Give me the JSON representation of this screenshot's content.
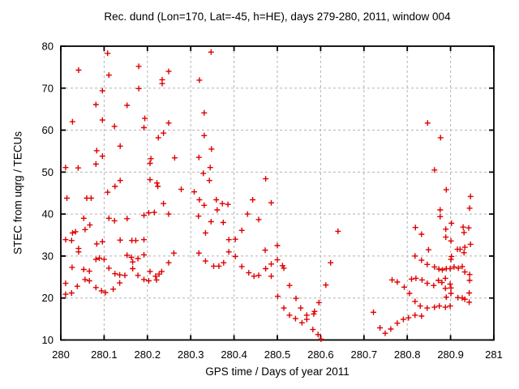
{
  "figure": {
    "background": "#ffffff"
  },
  "chart_data": {
    "type": "scatter",
    "title": "Rec. dund (Lon=170, Lat=-45, h=HE), days 279-280, 2011, window 004",
    "xlabel": "GPS time / Days of year 2011",
    "ylabel": "STEC from uqrg / TECUs",
    "xlim": [
      280,
      281
    ],
    "ylim": [
      10,
      80
    ],
    "xticks": {
      "values": [
        280,
        280.1,
        280.2,
        280.3,
        280.4,
        280.5,
        280.6,
        280.7,
        280.8,
        280.9,
        281
      ],
      "labels": [
        "280",
        "280.1",
        "280.2",
        "280.3",
        "280.4",
        "280.5",
        "280.6",
        "280.7",
        "280.8",
        "280.9",
        "281"
      ]
    },
    "yticks": {
      "values": [
        10,
        20,
        30,
        40,
        50,
        60,
        70,
        80
      ],
      "labels": [
        "10",
        "20",
        "30",
        "40",
        "50",
        "60",
        "70",
        "80"
      ]
    },
    "grid": true,
    "grid_color": "#b3b3b3",
    "axis_color": "#000000",
    "legend_position": "none",
    "marker": {
      "shape": "plus",
      "color": "#e00000",
      "size": 7
    },
    "points": [
      [
        280.108,
        78.3
      ],
      [
        280.041,
        74.3
      ],
      [
        280.111,
        73.1
      ],
      [
        280.18,
        75.2
      ],
      [
        280.249,
        74.0
      ],
      [
        280.234,
        72.0
      ],
      [
        280.234,
        71.1
      ],
      [
        280.32,
        71.9
      ],
      [
        280.096,
        69.4
      ],
      [
        280.18,
        69.9
      ],
      [
        280.081,
        66.1
      ],
      [
        280.153,
        65.9
      ],
      [
        280.096,
        62.4
      ],
      [
        280.027,
        62.0
      ],
      [
        280.124,
        60.9
      ],
      [
        280.194,
        62.8
      ],
      [
        280.192,
        60.6
      ],
      [
        280.249,
        61.7
      ],
      [
        280.237,
        59.3
      ],
      [
        280.225,
        58.2
      ],
      [
        280.137,
        56.2
      ],
      [
        280.083,
        55.1
      ],
      [
        280.096,
        53.8
      ],
      [
        280.081,
        51.9
      ],
      [
        280.011,
        51.1
      ],
      [
        280.04,
        51.0
      ],
      [
        280.208,
        53.2
      ],
      [
        280.206,
        52.1
      ],
      [
        280.263,
        53.4
      ],
      [
        280.319,
        53.5
      ],
      [
        280.206,
        48.2
      ],
      [
        280.222,
        47.4
      ],
      [
        280.224,
        46.6
      ],
      [
        280.125,
        46.6
      ],
      [
        280.137,
        48.0
      ],
      [
        280.278,
        45.9
      ],
      [
        280.308,
        45.3
      ],
      [
        280.108,
        45.2
      ],
      [
        280.347,
        78.6
      ],
      [
        280.331,
        64.1
      ],
      [
        280.331,
        58.7
      ],
      [
        280.348,
        55.5
      ],
      [
        280.345,
        51.1
      ],
      [
        280.329,
        49.7
      ],
      [
        280.343,
        48.0
      ],
      [
        280.473,
        48.4
      ],
      [
        280.847,
        61.7
      ],
      [
        280.877,
        58.2
      ],
      [
        280.863,
        50.5
      ],
      [
        280.89,
        45.8
      ],
      [
        280.014,
        43.8
      ],
      [
        280.06,
        43.8
      ],
      [
        280.07,
        43.8
      ],
      [
        280.32,
        43.4
      ],
      [
        280.237,
        42.5
      ],
      [
        280.203,
        40.3
      ],
      [
        280.216,
        40.4
      ],
      [
        280.192,
        39.7
      ],
      [
        280.249,
        40.0
      ],
      [
        280.053,
        39.0
      ],
      [
        280.111,
        39.0
      ],
      [
        280.124,
        38.4
      ],
      [
        280.153,
        38.9
      ],
      [
        280.067,
        37.4
      ],
      [
        280.056,
        36.3
      ],
      [
        280.034,
        35.8
      ],
      [
        280.027,
        35.5
      ],
      [
        280.011,
        33.9
      ],
      [
        280.025,
        33.7
      ],
      [
        280.041,
        31.8
      ],
      [
        280.041,
        31.0
      ],
      [
        280.083,
        32.9
      ],
      [
        280.096,
        33.4
      ],
      [
        280.137,
        33.8
      ],
      [
        280.164,
        33.7
      ],
      [
        280.173,
        33.7
      ],
      [
        280.192,
        33.9
      ],
      [
        280.081,
        29.2
      ],
      [
        280.089,
        29.5
      ],
      [
        280.1,
        29.2
      ],
      [
        280.153,
        30.2
      ],
      [
        280.163,
        29.7
      ],
      [
        280.178,
        29.4
      ],
      [
        280.166,
        28.6
      ],
      [
        280.192,
        30.3
      ],
      [
        280.261,
        30.7
      ],
      [
        280.249,
        28.4
      ],
      [
        280.026,
        27.3
      ],
      [
        280.053,
        26.8
      ],
      [
        280.066,
        26.4
      ],
      [
        280.111,
        27.1
      ],
      [
        280.166,
        27.0
      ],
      [
        280.125,
        25.8
      ],
      [
        280.136,
        25.5
      ],
      [
        280.148,
        25.4
      ],
      [
        280.178,
        25.4
      ],
      [
        280.206,
        26.3
      ],
      [
        280.219,
        25.2
      ],
      [
        280.227,
        25.7
      ],
      [
        280.233,
        26.3
      ],
      [
        280.192,
        24.4
      ],
      [
        280.203,
        24.1
      ],
      [
        280.221,
        24.3
      ],
      [
        280.056,
        24.4
      ],
      [
        280.066,
        24.1
      ],
      [
        280.011,
        23.5
      ],
      [
        280.038,
        22.8
      ],
      [
        280.136,
        23.6
      ],
      [
        280.081,
        22.5
      ],
      [
        280.094,
        21.7
      ],
      [
        280.103,
        21.3
      ],
      [
        280.121,
        22.1
      ],
      [
        280.025,
        21.2
      ],
      [
        280.011,
        20.9
      ],
      [
        280.331,
        42.1
      ],
      [
        280.359,
        43.4
      ],
      [
        280.373,
        42.5
      ],
      [
        280.386,
        42.3
      ],
      [
        280.361,
        41.0
      ],
      [
        280.443,
        43.4
      ],
      [
        280.486,
        42.7
      ],
      [
        280.318,
        39.5
      ],
      [
        280.347,
        38.2
      ],
      [
        280.375,
        38.0
      ],
      [
        280.431,
        40.0
      ],
      [
        280.457,
        38.7
      ],
      [
        280.418,
        36.1
      ],
      [
        280.334,
        35.5
      ],
      [
        280.388,
        33.9
      ],
      [
        280.403,
        34.0
      ],
      [
        280.388,
        31.0
      ],
      [
        280.319,
        30.7
      ],
      [
        280.472,
        31.4
      ],
      [
        280.5,
        32.5
      ],
      [
        280.403,
        29.9
      ],
      [
        280.334,
        28.8
      ],
      [
        280.353,
        27.6
      ],
      [
        280.365,
        27.6
      ],
      [
        280.376,
        28.4
      ],
      [
        280.418,
        27.5
      ],
      [
        280.434,
        26.0
      ],
      [
        280.446,
        25.2
      ],
      [
        280.457,
        25.4
      ],
      [
        280.473,
        27.0
      ],
      [
        280.486,
        28.1
      ],
      [
        280.486,
        25.2
      ],
      [
        280.5,
        29.1
      ],
      [
        280.512,
        27.7
      ],
      [
        280.515,
        27.1
      ],
      [
        280.528,
        23.0
      ],
      [
        280.501,
        20.4
      ],
      [
        280.543,
        19.9
      ],
      [
        280.515,
        17.6
      ],
      [
        280.554,
        17.6
      ],
      [
        280.528,
        15.9
      ],
      [
        280.542,
        15.1
      ],
      [
        280.557,
        14.1
      ],
      [
        280.568,
        14.9
      ],
      [
        280.568,
        15.9
      ],
      [
        280.584,
        16.2
      ],
      [
        280.586,
        16.8
      ],
      [
        280.596,
        18.9
      ],
      [
        280.582,
        12.5
      ],
      [
        280.594,
        11.3
      ],
      [
        280.601,
        10.2
      ],
      [
        280.612,
        23.1
      ],
      [
        280.623,
        28.4
      ],
      [
        280.64,
        35.9
      ],
      [
        280.946,
        44.2
      ],
      [
        280.944,
        41.4
      ],
      [
        280.876,
        41.0
      ],
      [
        280.876,
        39.4
      ],
      [
        280.902,
        37.8
      ],
      [
        280.929,
        36.9
      ],
      [
        280.942,
        36.7
      ],
      [
        280.931,
        35.6
      ],
      [
        280.819,
        36.8
      ],
      [
        280.833,
        35.2
      ],
      [
        280.889,
        36.4
      ],
      [
        280.889,
        34.5
      ],
      [
        280.901,
        33.6
      ],
      [
        280.946,
        32.8
      ],
      [
        280.916,
        31.6
      ],
      [
        280.922,
        31.6
      ],
      [
        280.933,
        32.1
      ],
      [
        280.931,
        30.8
      ],
      [
        280.849,
        31.5
      ],
      [
        280.818,
        30.0
      ],
      [
        280.902,
        29.9
      ],
      [
        280.901,
        29.2
      ],
      [
        280.833,
        29.0
      ],
      [
        280.846,
        28.0
      ],
      [
        280.863,
        27.4
      ],
      [
        280.873,
        26.9
      ],
      [
        280.881,
        26.7
      ],
      [
        280.89,
        27.0
      ],
      [
        280.899,
        27.0
      ],
      [
        280.908,
        27.4
      ],
      [
        280.918,
        27.1
      ],
      [
        280.927,
        27.5
      ],
      [
        280.933,
        26.2
      ],
      [
        280.944,
        25.6
      ],
      [
        280.944,
        24.2
      ],
      [
        280.765,
        24.3
      ],
      [
        280.777,
        23.8
      ],
      [
        280.793,
        22.6
      ],
      [
        280.81,
        24.5
      ],
      [
        280.82,
        24.7
      ],
      [
        280.834,
        24.3
      ],
      [
        280.846,
        23.5
      ],
      [
        280.861,
        23.0
      ],
      [
        280.872,
        24.2
      ],
      [
        280.88,
        23.7
      ],
      [
        280.888,
        24.7
      ],
      [
        280.888,
        22.3
      ],
      [
        280.899,
        23.3
      ],
      [
        280.901,
        22.4
      ],
      [
        280.805,
        21.1
      ],
      [
        280.818,
        19.2
      ],
      [
        280.89,
        20.2
      ],
      [
        280.901,
        21.1
      ],
      [
        280.917,
        20.1
      ],
      [
        280.927,
        20.0
      ],
      [
        280.933,
        19.7
      ],
      [
        280.943,
        21.2
      ],
      [
        280.943,
        19.0
      ],
      [
        280.83,
        18.1
      ],
      [
        280.846,
        17.6
      ],
      [
        280.863,
        17.8
      ],
      [
        280.874,
        18.1
      ],
      [
        280.888,
        17.8
      ],
      [
        280.899,
        18.1
      ],
      [
        280.722,
        16.6
      ],
      [
        280.818,
        15.9
      ],
      [
        280.833,
        15.7
      ],
      [
        280.803,
        15.3
      ],
      [
        280.791,
        14.9
      ],
      [
        280.777,
        14.0
      ],
      [
        280.762,
        12.6
      ],
      [
        280.737,
        12.9
      ],
      [
        280.749,
        11.6
      ]
    ]
  }
}
